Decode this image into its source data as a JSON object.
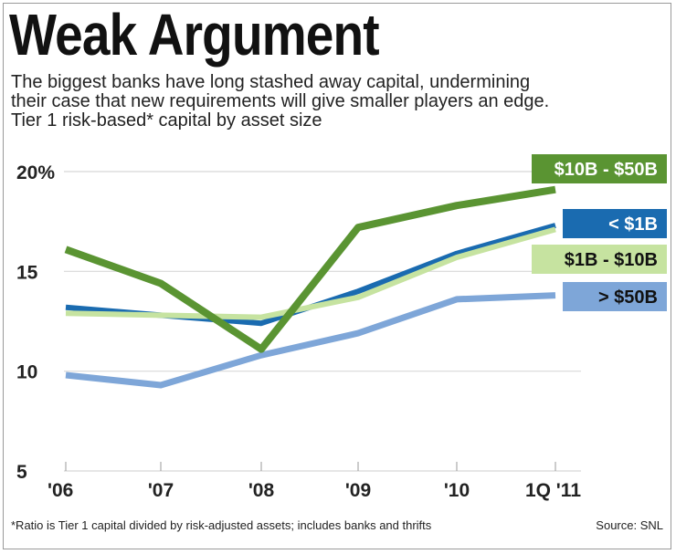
{
  "header": {
    "title": "Weak Argument",
    "subtitle_lines": [
      "The biggest banks have long stashed away capital, undermining",
      "their case that new requirements will give smaller players an edge.",
      "Tier 1 risk-based* capital by asset size"
    ]
  },
  "footer": {
    "footnote": "*Ratio is Tier 1 capital divided by risk-adjusted assets; includes banks and thrifts",
    "source": "Source: SNL"
  },
  "chart_data": {
    "type": "line",
    "title": "Weak Argument",
    "xlabel": "",
    "ylabel": "Tier 1 risk-based* capital by asset size",
    "x": [
      "'06",
      "'07",
      "'08",
      "'09",
      "'10",
      "1Q '11"
    ],
    "y_ticks": [
      "5",
      "10",
      "15",
      "20%"
    ],
    "y_tick_values": [
      5,
      10,
      15,
      20
    ],
    "ylim": [
      5,
      20
    ],
    "grid": true,
    "legend_position": "right",
    "series": [
      {
        "name": "> $50B",
        "color": "#7ea6d8",
        "text_color": "#111111",
        "values": [
          9.8,
          9.3,
          10.8,
          11.9,
          13.6,
          13.8
        ]
      },
      {
        "name": "< $1B",
        "color": "#1a6bb0",
        "text_color": "#ffffff",
        "values": [
          13.2,
          12.8,
          12.4,
          14.0,
          15.9,
          17.3
        ]
      },
      {
        "name": "$1B - $10B",
        "color": "#c6e3a0",
        "text_color": "#111111",
        "values": [
          12.9,
          12.8,
          12.7,
          13.7,
          15.7,
          17.1
        ]
      },
      {
        "name": "$10B - $50B",
        "color": "#5a9432",
        "text_color": "#ffffff",
        "values": [
          16.1,
          14.4,
          11.1,
          17.2,
          18.3,
          19.1
        ]
      }
    ]
  }
}
